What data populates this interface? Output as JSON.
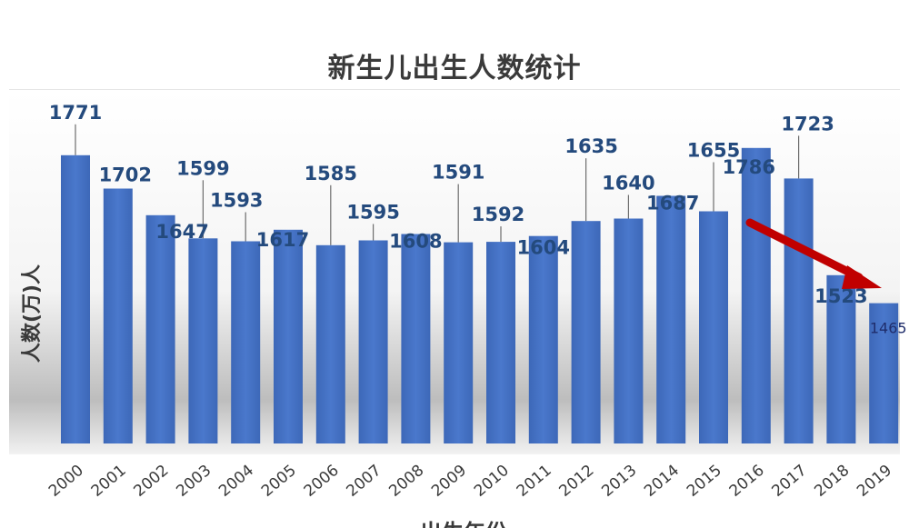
{
  "chart_data": {
    "type": "bar",
    "title": "新生儿出生人数统计",
    "ylabel": "人数(万)人",
    "xlabel": "出生年份",
    "categories": [
      "2000",
      "2001",
      "2002",
      "2003",
      "2004",
      "2005",
      "2006",
      "2007",
      "2008",
      "2009",
      "2010",
      "2011",
      "2012",
      "2013",
      "2014",
      "2015",
      "2016",
      "2017",
      "2018",
      "2019"
    ],
    "series": [
      {
        "values": [
          1771,
          1702,
          1647,
          1599,
          1593,
          1617,
          1585,
          1595,
          1608,
          1591,
          1592,
          1604,
          1635,
          1640,
          1687,
          1655,
          1786,
          1723,
          1523,
          1465
        ],
        "color": "#4472c4"
      }
    ],
    "ylim": [
      0,
      1850
    ],
    "grid": false,
    "legend": "none",
    "annotations": [
      {
        "type": "arrow",
        "color": "#c00000",
        "meaning": "downward trend"
      }
    ]
  }
}
